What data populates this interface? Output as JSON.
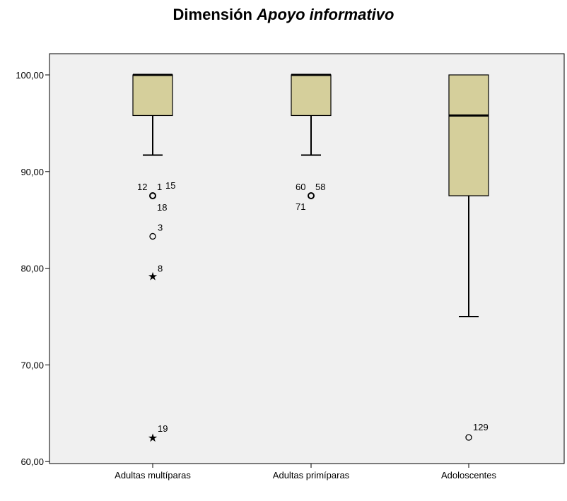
{
  "chart_data": {
    "type": "box",
    "title": "Dimensión",
    "title_italic": "Apoyo informativo",
    "xlabel": "",
    "ylabel": "",
    "ylim": [
      59,
      102
    ],
    "yticks": [
      "60,00",
      "70,00",
      "80,00",
      "90,00",
      "100,00"
    ],
    "ytick_values": [
      60,
      70,
      80,
      90,
      100
    ],
    "grid": false,
    "legend": "none",
    "colors": {
      "box_fill": "#d5cf9b",
      "plot_bg": "#f0f0f0",
      "stroke": "#000000"
    },
    "categories": [
      "Adultas multíparas",
      "Adultas primíparas",
      "Adoloscentes"
    ],
    "boxes": [
      {
        "category": "Adultas multíparas",
        "whisker_low": 91.7,
        "q1": 95.8,
        "median": 100,
        "q3": 100,
        "whisker_high": 100,
        "outliers": [
          {
            "value": 87.5,
            "marker": "circle",
            "labels": [
              "12",
              "1",
              "15",
              "18"
            ]
          },
          {
            "value": 83.3,
            "marker": "circle",
            "labels": [
              "3"
            ]
          },
          {
            "value": 79.2,
            "marker": "star",
            "labels": [
              "8"
            ]
          },
          {
            "value": 62.5,
            "marker": "star",
            "labels": [
              "19"
            ]
          }
        ]
      },
      {
        "category": "Adultas primíparas",
        "whisker_low": 91.7,
        "q1": 95.8,
        "median": 100,
        "q3": 100,
        "whisker_high": 100,
        "outliers": [
          {
            "value": 87.5,
            "marker": "circle",
            "labels": [
              "60",
              "58",
              "71"
            ]
          }
        ]
      },
      {
        "category": "Adoloscentes",
        "whisker_low": 75.0,
        "q1": 87.5,
        "median": 95.8,
        "q3": 100,
        "whisker_high": 100,
        "outliers": [
          {
            "value": 62.5,
            "marker": "circle",
            "labels": [
              "129"
            ]
          }
        ]
      }
    ]
  }
}
